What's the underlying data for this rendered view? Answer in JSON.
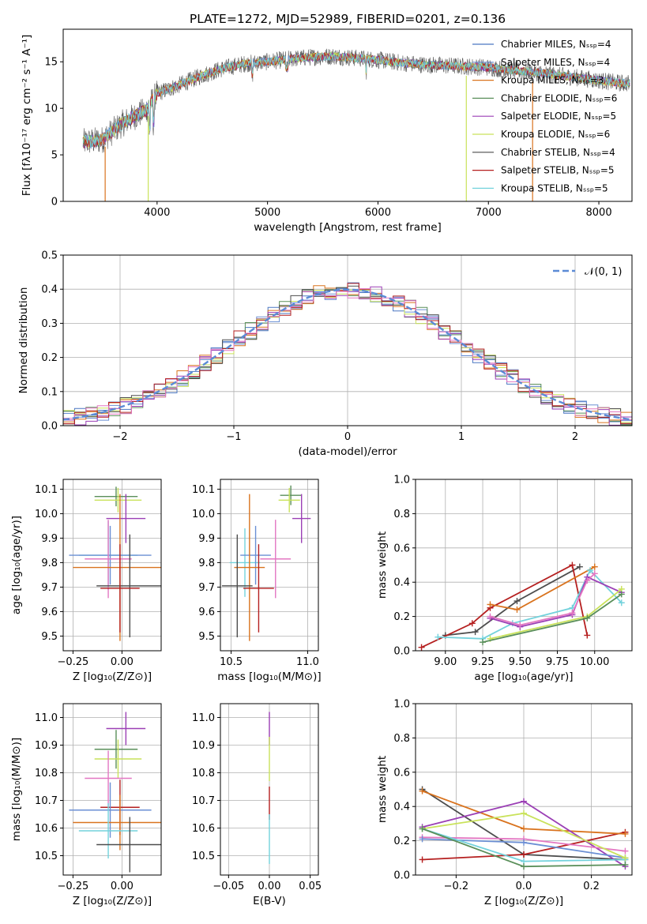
{
  "chart_data": [
    {
      "id": "spectrum",
      "type": "line",
      "title": "PLATE=1272, MJD=52989, FIBERID=0201, z=0.136",
      "xlabel": "wavelength [Angstrom, rest frame]",
      "ylabel": "Flux [fλ10⁻¹⁷ erg cm⁻² s⁻¹ A⁻¹]",
      "xlim": [
        3150,
        8300
      ],
      "ylim": [
        0,
        18.5
      ],
      "xticks": [
        "4000",
        "5000",
        "6000",
        "7000",
        "8000"
      ],
      "yticks": [
        "0",
        "5",
        "10",
        "15"
      ],
      "legend_position": "top-right",
      "continuum": {
        "wavelength": [
          3300,
          3500,
          3700,
          3900,
          4000,
          4200,
          4400,
          4600,
          4800,
          5000,
          5200,
          5400,
          5600,
          5800,
          6000,
          6200,
          6400,
          6600,
          6800,
          7000,
          7200,
          7400,
          7600,
          7800,
          8000,
          8200
        ],
        "flux": [
          6.3,
          6.6,
          8.5,
          9.8,
          11.6,
          12.5,
          13.5,
          14.3,
          14.8,
          15.0,
          15.3,
          15.5,
          15.6,
          15.4,
          15.2,
          14.9,
          14.7,
          14.6,
          14.5,
          14.4,
          14.1,
          13.9,
          13.6,
          13.3,
          13.0,
          12.7
        ]
      },
      "series": [
        {
          "name": "Chabrier MILES, N_SSP=4",
          "color": "#4a77c2"
        },
        {
          "name": "Salpeter MILES, N_SSP=4",
          "color": "#6b8fd4"
        },
        {
          "name": "Kroupa MILES, N_SSP=3",
          "color": "#d9731e"
        },
        {
          "name": "Chabrier ELODIE, N_SSP=6",
          "color": "#5a8f5a"
        },
        {
          "name": "Salpeter ELODIE, N_SSP=5",
          "color": "#9b3fb5"
        },
        {
          "name": "Kroupa ELODIE, N_SSP=6",
          "color": "#c9e25a"
        },
        {
          "name": "Chabrier STELIB, N_SSP=4",
          "color": "#4d4d4d"
        },
        {
          "name": "Salpeter STELIB, N_SSP=5",
          "color": "#b51f1f"
        },
        {
          "name": "Kroupa STELIB, N_SSP=5",
          "color": "#73d2dc"
        }
      ]
    },
    {
      "id": "residuals",
      "type": "line",
      "xlabel": "(data-model)/error",
      "ylabel": "Normed distribution",
      "xlim": [
        -2.5,
        2.5
      ],
      "ylim": [
        0,
        0.5
      ],
      "xticks": [
        "−2",
        "−1",
        "0",
        "1",
        "2"
      ],
      "yticks": [
        "0.0",
        "0.1",
        "0.2",
        "0.3",
        "0.4",
        "0.5"
      ],
      "grid": true,
      "legend_position": "top-right",
      "legend_label": "𝒩(0, 1)",
      "reference_curve": {
        "type": "gaussian",
        "mean": 0,
        "sigma": 1,
        "color": "#5b8bd6"
      },
      "bin_width": 0.1,
      "series_colors": [
        "#4a77c2",
        "#6b8fd4",
        "#d9731e",
        "#5a8f5a",
        "#9b3fb5",
        "#c9e25a",
        "#4d4d4d",
        "#b51f1f",
        "#e377c2"
      ]
    },
    {
      "id": "z-age",
      "type": "scatter",
      "xlabel": "Z [log₁₀(Z/Z⊙)]",
      "ylabel": "age  [log₁₀(age/yr)]",
      "xlim": [
        -0.3,
        0.2
      ],
      "ylim": [
        9.44,
        10.14
      ],
      "xticks": [
        "−0.25",
        "0.00"
      ],
      "yticks": [
        "9.5",
        "9.6",
        "9.7",
        "9.8",
        "9.9",
        "10.0",
        "10.1"
      ],
      "grid": true,
      "points": [
        {
          "color": "#5a8f5a",
          "x": -0.03,
          "xerr": 0.11,
          "y": 10.07,
          "yerr": 0.04
        },
        {
          "color": "#c9e25a",
          "x": -0.02,
          "xerr": 0.12,
          "y": 10.055,
          "yerr": 0.05
        },
        {
          "color": "#9b3fb5",
          "x": 0.02,
          "xerr": 0.1,
          "y": 9.98,
          "yerr": 0.1
        },
        {
          "color": "#73d2dc",
          "x": -0.07,
          "xerr": 0.15,
          "y": 9.83,
          "yerr": 0.14
        },
        {
          "color": "#6b8fd4",
          "x": -0.06,
          "xerr": 0.21,
          "y": 9.83,
          "yerr": 0.12
        },
        {
          "color": "#e377c2",
          "x": -0.07,
          "xerr": 0.12,
          "y": 9.815,
          "yerr": 0.16
        },
        {
          "color": "#d9731e",
          "x": -0.01,
          "xerr": 0.24,
          "y": 9.78,
          "yerr": 0.3
        },
        {
          "color": "#4d4d4d",
          "x": 0.04,
          "xerr": 0.17,
          "y": 9.705,
          "yerr": 0.21
        },
        {
          "color": "#b51f1f",
          "x": -0.01,
          "xerr": 0.1,
          "y": 9.695,
          "yerr": 0.18
        }
      ]
    },
    {
      "id": "mass-age",
      "type": "scatter",
      "xlabel": "mass [log₁₀(M/M⊙)]",
      "ylabel": "",
      "xlim": [
        10.43,
        11.07
      ],
      "ylim": [
        9.44,
        10.14
      ],
      "xticks": [
        "10.5",
        "11.0"
      ],
      "yticks": [
        "9.5",
        "9.6",
        "9.7",
        "9.8",
        "9.9",
        "10.0",
        "10.1"
      ],
      "grid": true,
      "points": [
        {
          "color": "#5a8f5a",
          "x": 10.89,
          "xerr": 0.07,
          "y": 10.075,
          "yerr": 0.04
        },
        {
          "color": "#c9e25a",
          "x": 10.88,
          "xerr": 0.07,
          "y": 10.055,
          "yerr": 0.05
        },
        {
          "color": "#9b3fb5",
          "x": 10.96,
          "xerr": 0.06,
          "y": 9.98,
          "yerr": 0.1
        },
        {
          "color": "#73d2dc",
          "x": 10.59,
          "xerr": 0.1,
          "y": 9.8,
          "yerr": 0.14
        },
        {
          "color": "#6b8fd4",
          "x": 10.66,
          "xerr": 0.1,
          "y": 9.83,
          "yerr": 0.12
        },
        {
          "color": "#e377c2",
          "x": 10.79,
          "xerr": 0.1,
          "y": 9.815,
          "yerr": 0.16
        },
        {
          "color": "#d9731e",
          "x": 10.62,
          "xerr": 0.1,
          "y": 9.78,
          "yerr": 0.3
        },
        {
          "color": "#4d4d4d",
          "x": 10.54,
          "xerr": 0.1,
          "y": 9.705,
          "yerr": 0.21
        },
        {
          "color": "#b51f1f",
          "x": 10.68,
          "xerr": 0.1,
          "y": 9.695,
          "yerr": 0.18
        }
      ]
    },
    {
      "id": "age-weight",
      "type": "line",
      "xlabel": "age  [log₁₀(age/yr)]",
      "ylabel": "mass weight",
      "xlim": [
        8.8,
        10.25
      ],
      "ylim": [
        0,
        1
      ],
      "xticks": [
        "9.00",
        "9.25",
        "9.50",
        "9.75",
        "10.00"
      ],
      "yticks": [
        "0.0",
        "0.2",
        "0.4",
        "0.6",
        "0.8",
        "1.0"
      ],
      "grid": true,
      "series": [
        {
          "color": "#4d4d4d",
          "points": [
            [
              9.0,
              0.09
            ],
            [
              9.2,
              0.11
            ],
            [
              9.48,
              0.29
            ],
            [
              9.9,
              0.49
            ]
          ]
        },
        {
          "color": "#b51f1f",
          "points": [
            [
              8.84,
              0.02
            ],
            [
              9.18,
              0.16
            ],
            [
              9.3,
              0.25
            ],
            [
              9.85,
              0.5
            ],
            [
              9.95,
              0.09
            ]
          ]
        },
        {
          "color": "#d9731e",
          "points": [
            [
              9.3,
              0.27
            ],
            [
              9.48,
              0.24
            ],
            [
              10.0,
              0.49
            ]
          ]
        },
        {
          "color": "#73d2dc",
          "points": [
            [
              8.95,
              0.08
            ],
            [
              9.25,
              0.07
            ],
            [
              9.45,
              0.16
            ],
            [
              9.85,
              0.25
            ],
            [
              9.97,
              0.47
            ],
            [
              10.18,
              0.28
            ]
          ]
        },
        {
          "color": "#9b3fb5",
          "points": [
            [
              9.3,
              0.19
            ],
            [
              9.5,
              0.14
            ],
            [
              9.85,
              0.21
            ],
            [
              9.95,
              0.43
            ],
            [
              10.18,
              0.34
            ]
          ]
        },
        {
          "color": "#e377c2",
          "points": [
            [
              9.3,
              0.2
            ],
            [
              9.5,
              0.15
            ],
            [
              9.85,
              0.22
            ],
            [
              9.95,
              0.41
            ],
            [
              10.0,
              0.45
            ]
          ]
        },
        {
          "color": "#c9e25a",
          "points": [
            [
              9.3,
              0.07
            ],
            [
              9.95,
              0.2
            ],
            [
              10.18,
              0.36
            ]
          ]
        },
        {
          "color": "#5a8f5a",
          "points": [
            [
              9.25,
              0.05
            ],
            [
              9.95,
              0.19
            ],
            [
              10.18,
              0.33
            ]
          ]
        }
      ]
    },
    {
      "id": "z-mass",
      "type": "scatter",
      "xlabel": "Z [log₁₀(Z/Z⊙)]",
      "ylabel": "mass [log₁₀(M/M⊙)]",
      "xlim": [
        -0.3,
        0.2
      ],
      "ylim": [
        10.43,
        11.05
      ],
      "xticks": [
        "−0.25",
        "0.00"
      ],
      "yticks": [
        "10.5",
        "10.6",
        "10.7",
        "10.8",
        "10.9",
        "11.0"
      ],
      "grid": true,
      "points": [
        {
          "color": "#9b3fb5",
          "x": 0.02,
          "xerr": 0.1,
          "y": 10.96,
          "yerr": 0.06
        },
        {
          "color": "#5a8f5a",
          "x": -0.03,
          "xerr": 0.11,
          "y": 10.885,
          "yerr": 0.07
        },
        {
          "color": "#c9e25a",
          "x": -0.02,
          "xerr": 0.12,
          "y": 10.85,
          "yerr": 0.07
        },
        {
          "color": "#e377c2",
          "x": -0.07,
          "xerr": 0.12,
          "y": 10.78,
          "yerr": 0.1
        },
        {
          "color": "#b51f1f",
          "x": -0.01,
          "xerr": 0.1,
          "y": 10.675,
          "yerr": 0.1
        },
        {
          "color": "#6b8fd4",
          "x": -0.06,
          "xerr": 0.21,
          "y": 10.665,
          "yerr": 0.1
        },
        {
          "color": "#d9731e",
          "x": -0.01,
          "xerr": 0.24,
          "y": 10.62,
          "yerr": 0.1
        },
        {
          "color": "#73d2dc",
          "x": -0.07,
          "xerr": 0.15,
          "y": 10.59,
          "yerr": 0.1
        },
        {
          "color": "#4d4d4d",
          "x": 0.04,
          "xerr": 0.17,
          "y": 10.54,
          "yerr": 0.1
        }
      ]
    },
    {
      "id": "ebv-mass",
      "type": "scatter",
      "xlabel": "E(B-V)",
      "ylabel": "",
      "xlim": [
        -0.06,
        0.06
      ],
      "ylim": [
        10.43,
        11.05
      ],
      "xticks": [
        "−0.05",
        "0.00",
        "0.05"
      ],
      "yticks": [
        "10.5",
        "10.6",
        "10.7",
        "10.8",
        "10.9",
        "11.0"
      ],
      "grid": true,
      "points": [
        {
          "color": "#9b3fb5",
          "x": 0,
          "xerr": 0,
          "y": 10.96,
          "yerr": 0.06
        },
        {
          "color": "#c9e25a",
          "x": 0,
          "xerr": 0,
          "y": 10.85,
          "yerr": 0.08
        },
        {
          "color": "#b51f1f",
          "x": 0,
          "xerr": 0,
          "y": 10.69,
          "yerr": 0.06
        },
        {
          "color": "#73d2dc",
          "x": 0,
          "xerr": 0,
          "y": 10.56,
          "yerr": 0.09
        }
      ]
    },
    {
      "id": "z-weight",
      "type": "line",
      "xlabel": "Z [log₁₀(Z/Z⊙)]",
      "ylabel": "mass weight",
      "xlim": [
        -0.32,
        0.32
      ],
      "ylim": [
        0,
        1
      ],
      "xticks": [
        "−0.2",
        "0.0",
        "0.2"
      ],
      "yticks": [
        "0.0",
        "0.2",
        "0.4",
        "0.6",
        "0.8",
        "1.0"
      ],
      "grid": true,
      "series": [
        {
          "color": "#4d4d4d",
          "points": [
            [
              -0.3,
              0.5
            ],
            [
              0.0,
              0.12
            ],
            [
              0.3,
              0.09
            ]
          ]
        },
        {
          "color": "#b51f1f",
          "points": [
            [
              -0.3,
              0.09
            ],
            [
              0.0,
              0.12
            ],
            [
              0.3,
              0.25
            ]
          ]
        },
        {
          "color": "#d9731e",
          "points": [
            [
              -0.3,
              0.49
            ],
            [
              0.0,
              0.27
            ],
            [
              0.3,
              0.24
            ]
          ]
        },
        {
          "color": "#9b3fb5",
          "points": [
            [
              -0.3,
              0.28
            ],
            [
              0.0,
              0.43
            ],
            [
              0.3,
              0.05
            ]
          ]
        },
        {
          "color": "#e377c2",
          "points": [
            [
              -0.3,
              0.22
            ],
            [
              0.0,
              0.21
            ],
            [
              0.3,
              0.14
            ]
          ]
        },
        {
          "color": "#6b8fd4",
          "points": [
            [
              -0.3,
              0.21
            ],
            [
              0.0,
              0.19
            ],
            [
              0.3,
              0.1
            ]
          ]
        },
        {
          "color": "#73d2dc",
          "points": [
            [
              -0.3,
              0.27
            ],
            [
              0.0,
              0.08
            ],
            [
              0.3,
              0.09
            ]
          ]
        },
        {
          "color": "#c9e25a",
          "points": [
            [
              -0.3,
              0.27
            ],
            [
              0.0,
              0.36
            ],
            [
              0.3,
              0.1
            ]
          ]
        },
        {
          "color": "#5a8f5a",
          "points": [
            [
              -0.3,
              0.27
            ],
            [
              0.0,
              0.05
            ],
            [
              0.3,
              0.06
            ]
          ]
        }
      ]
    }
  ]
}
